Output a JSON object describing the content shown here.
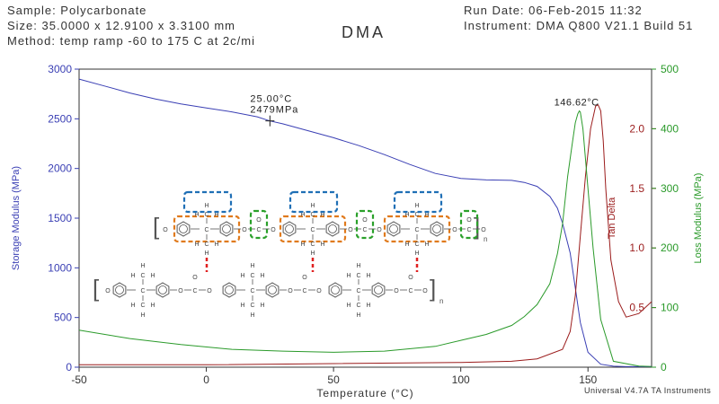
{
  "header": {
    "sample": "Sample: Polycarbonate",
    "size": "Size:  35.0000 x 12.9100 x 3.3100 mm",
    "method": "Method: temp ramp -60 to 175 C at 2c/mi",
    "title": "DMA",
    "run_date": "Run Date: 06-Feb-2015 11:32",
    "instrument": "Instrument: DMA Q800 V21.1 Build 51"
  },
  "footer": "Universal V4.7A TA Instruments",
  "colors": {
    "storage": "#3a3fb4",
    "tan_delta": "#9b1c1c",
    "loss": "#2a9a2a",
    "highlight_blue": "#1f6fb5",
    "highlight_orange": "#e07a1c",
    "highlight_green": "#2aa02a",
    "bond_red": "#e02020"
  },
  "chart_data": {
    "type": "line",
    "xlabel": "Temperature (°C)",
    "xlim": [
      -50,
      175
    ],
    "xticks": [
      -50,
      0,
      50,
      100,
      150
    ],
    "y_left": {
      "label": "Storage Modulus (MPa)",
      "lim": [
        0,
        3000
      ],
      "ticks": [
        0,
        500,
        1000,
        1500,
        2000,
        2500,
        3000
      ]
    },
    "y_right_tan": {
      "label": "Tan Delta",
      "lim": [
        0,
        2.5
      ],
      "ticks": [
        0.5,
        1.0,
        1.5,
        2.0
      ],
      "tick_labels": [
        "0.5",
        "1.0",
        "1.5",
        "2.0"
      ]
    },
    "y_right_loss": {
      "label": "Loss Modulus (MPa)",
      "lim": [
        0,
        500
      ],
      "ticks": [
        0,
        100,
        200,
        300,
        400,
        500
      ]
    },
    "series": [
      {
        "axis": "left",
        "x": [
          -50,
          -40,
          -30,
          -20,
          -10,
          0,
          10,
          20,
          25,
          30,
          40,
          50,
          60,
          70,
          80,
          90,
          100,
          110,
          120,
          125,
          130,
          135,
          138,
          140,
          143,
          145,
          147,
          150,
          155,
          160,
          165,
          170,
          175
        ],
        "y": [
          2900,
          2830,
          2760,
          2700,
          2650,
          2610,
          2570,
          2520,
          2479,
          2450,
          2380,
          2310,
          2230,
          2140,
          2040,
          1950,
          1900,
          1885,
          1880,
          1860,
          1820,
          1720,
          1600,
          1450,
          1150,
          800,
          450,
          150,
          30,
          10,
          5,
          5,
          5
        ]
      },
      {
        "axis": "right_tan",
        "x": [
          -50,
          0,
          50,
          100,
          120,
          130,
          140,
          143,
          145,
          147,
          149,
          151,
          153,
          154,
          155,
          156,
          157,
          159,
          162,
          165,
          170,
          175
        ],
        "y": [
          0.02,
          0.02,
          0.03,
          0.04,
          0.05,
          0.07,
          0.15,
          0.3,
          0.6,
          1.1,
          1.6,
          2.0,
          2.19,
          2.2,
          2.15,
          1.9,
          1.5,
          0.9,
          0.55,
          0.42,
          0.45,
          0.55
        ]
      },
      {
        "axis": "right_loss",
        "x": [
          -50,
          -30,
          -10,
          10,
          30,
          50,
          70,
          90,
          100,
          110,
          120,
          125,
          130,
          135,
          138,
          140,
          142,
          144,
          145,
          146,
          146.6,
          147,
          148,
          150,
          152,
          155,
          160,
          170,
          175
        ],
        "y": [
          62,
          48,
          38,
          30,
          27,
          25,
          27,
          35,
          45,
          55,
          70,
          85,
          105,
          140,
          190,
          240,
          320,
          380,
          410,
          425,
          430,
          428,
          400,
          300,
          200,
          80,
          10,
          2,
          1
        ]
      }
    ],
    "annotations": [
      {
        "text_line1": "25.00°C",
        "text_line2": "2479MPa",
        "x": 25,
        "y": 2479
      },
      {
        "text": "146.62°C",
        "x": 146.62,
        "y_loss": 430
      }
    ]
  },
  "structures": {
    "upper_subscript": "n",
    "lower_subscript": "n",
    "atoms": {
      "H": "H",
      "C": "C",
      "O": "O"
    }
  }
}
